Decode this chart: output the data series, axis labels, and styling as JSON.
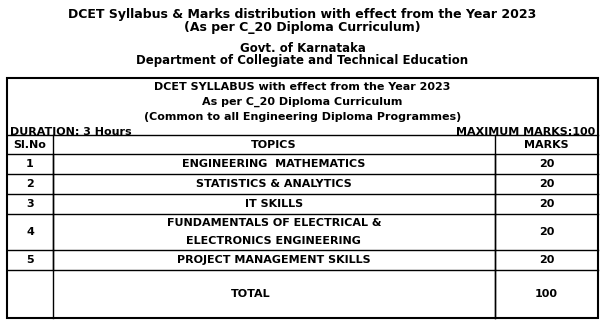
{
  "title_line1": "DCET Syllabus & Marks distribution with effect from the Year 2023",
  "title_line2": "(As per C_20 Diploma Curriculum)",
  "subtitle_line1": "Govt. of Karnataka",
  "subtitle_line2": "Department of Collegiate and Technical Education",
  "box_header_line1": "DCET SYLLABUS with effect from the Year 2023",
  "box_header_line2": "As per C_20 Diploma Curriculum",
  "box_header_line3": "(Common to all Engineering Diploma Programmes)",
  "duration": "DURATION: 3 Hours",
  "max_marks": "MAXIMUM MARKS:100",
  "col_headers": [
    "Sl.No",
    "TOPICS",
    "MARKS"
  ],
  "rows": [
    [
      "1",
      "ENGINEERING  MATHEMATICS",
      "20"
    ],
    [
      "2",
      "STATISTICS & ANALYTICS",
      "20"
    ],
    [
      "3",
      "IT SKILLS",
      "20"
    ],
    [
      "4",
      "FUNDAMENTALS OF ELECTRICAL &\nELECTRONICS ENGINEERING",
      "20"
    ],
    [
      "5",
      "PROJECT MANAGEMENT SKILLS",
      "20"
    ],
    [
      "",
      "TOTAL",
      "100"
    ]
  ],
  "bg_color": "#ffffff",
  "text_color": "#000000",
  "border_color": "#000000",
  "title_fs": 9,
  "sub_fs": 8.5,
  "table_header_fs": 8,
  "table_fs": 8
}
